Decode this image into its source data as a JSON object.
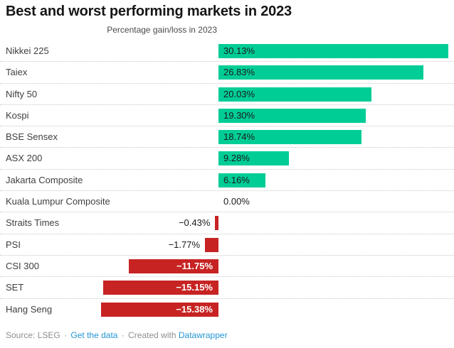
{
  "title": "Best and worst performing markets in 2023",
  "axis_label": "Percentage gain/loss in 2023",
  "chart_data": {
    "type": "bar",
    "orientation": "horizontal",
    "title": "Best and worst performing markets in 2023",
    "xlabel": "Percentage gain/loss in 2023",
    "ylabel": "",
    "xlim": [
      -16,
      31
    ],
    "grid": false,
    "legend": "none",
    "categories": [
      "Nikkei 225",
      "Taiex",
      "Nifty 50",
      "Kospi",
      "BSE Sensex",
      "ASX 200",
      "Jakarta Composite",
      "Kuala Lumpur Composite",
      "Straits Times",
      "PSI",
      "CSI 300",
      "SET",
      "Hang Seng"
    ],
    "values": [
      30.13,
      26.83,
      20.03,
      19.3,
      18.74,
      9.28,
      6.16,
      0.0,
      -0.43,
      -1.77,
      -11.75,
      -15.15,
      -15.38
    ],
    "value_labels": [
      "30.13%",
      "26.83%",
      "20.03%",
      "19.30%",
      "18.74%",
      "9.28%",
      "6.16%",
      "0.00%",
      "−0.43%",
      "−1.77%",
      "−11.75%",
      "−15.15%",
      "−15.38%"
    ],
    "positive_color": "#00CD96",
    "negative_color": "#C72323",
    "separator_style": "dotted"
  },
  "footer": {
    "source_label": "Source: LSEG",
    "separator": "·",
    "get_data_link": "Get the data",
    "created_with": "Created with",
    "datawrapper_link": "Datawrapper",
    "link_color": "#2496D5"
  }
}
